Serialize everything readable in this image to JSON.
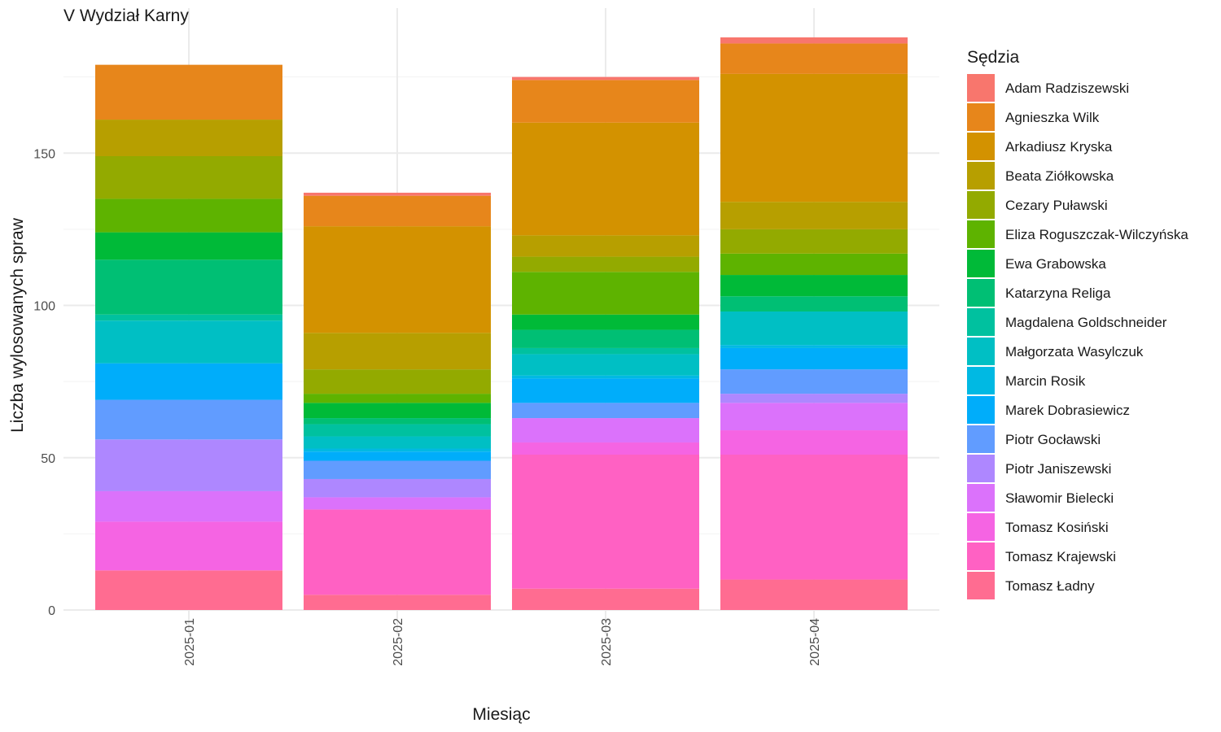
{
  "chart_data": {
    "type": "bar",
    "stacked": true,
    "title": "V Wydział Karny",
    "xlabel": "Miesiąc",
    "ylabel": "Liczba wylosowanych spraw",
    "categories": [
      "2025-01",
      "2025-02",
      "2025-03",
      "2025-04"
    ],
    "ylim": [
      0,
      190
    ],
    "yticks": [
      0,
      50,
      100,
      150
    ],
    "grid": true,
    "legend": {
      "title": "Sędzia",
      "position": "right"
    },
    "series": [
      {
        "name": "Adam Radziszewski",
        "color": "#F8766D",
        "values": [
          0,
          1,
          1,
          2
        ]
      },
      {
        "name": "Agnieszka Wilk",
        "color": "#E7861B",
        "values": [
          18,
          10,
          14,
          10
        ]
      },
      {
        "name": "Arkadiusz Kryska",
        "color": "#D39200",
        "values": [
          0,
          35,
          37,
          42
        ]
      },
      {
        "name": "Beata Ziółkowska",
        "color": "#B79F00",
        "values": [
          12,
          12,
          7,
          9
        ]
      },
      {
        "name": "Cezary Puławski",
        "color": "#93AA00",
        "values": [
          14,
          8,
          5,
          8
        ]
      },
      {
        "name": "Eliza Roguszczak-Wilczyńska",
        "color": "#5EB300",
        "values": [
          11,
          3,
          14,
          7
        ]
      },
      {
        "name": "Ewa Grabowska",
        "color": "#00BA38",
        "values": [
          9,
          5,
          5,
          7
        ]
      },
      {
        "name": "Katarzyna Religa",
        "color": "#00BF74",
        "values": [
          18,
          2,
          6,
          5
        ]
      },
      {
        "name": "Magdalena Goldschneider",
        "color": "#00C19F",
        "values": [
          2,
          4,
          2,
          0
        ]
      },
      {
        "name": "Małgorzata Wasylczuk",
        "color": "#00BFC4",
        "values": [
          14,
          4,
          7,
          11
        ]
      },
      {
        "name": "Marcin Rosik",
        "color": "#00B9E3",
        "values": [
          0,
          1,
          1,
          1
        ]
      },
      {
        "name": "Marek Dobrasiewicz",
        "color": "#00ADFA",
        "values": [
          12,
          3,
          8,
          7
        ]
      },
      {
        "name": "Piotr Gocławski",
        "color": "#619CFF",
        "values": [
          13,
          6,
          5,
          8
        ]
      },
      {
        "name": "Piotr Janiszewski",
        "color": "#AE87FF",
        "values": [
          17,
          6,
          0,
          3
        ]
      },
      {
        "name": "Sławomir Bielecki",
        "color": "#DB72FB",
        "values": [
          10,
          4,
          8,
          9
        ]
      },
      {
        "name": "Tomasz Kosiński",
        "color": "#F564E3",
        "values": [
          16,
          0,
          4,
          8
        ]
      },
      {
        "name": "Tomasz Krajewski",
        "color": "#FF61C3",
        "values": [
          0,
          28,
          44,
          41
        ]
      },
      {
        "name": "Tomasz Ładny",
        "color": "#FF6C91",
        "values": [
          13,
          5,
          7,
          10
        ]
      }
    ]
  }
}
